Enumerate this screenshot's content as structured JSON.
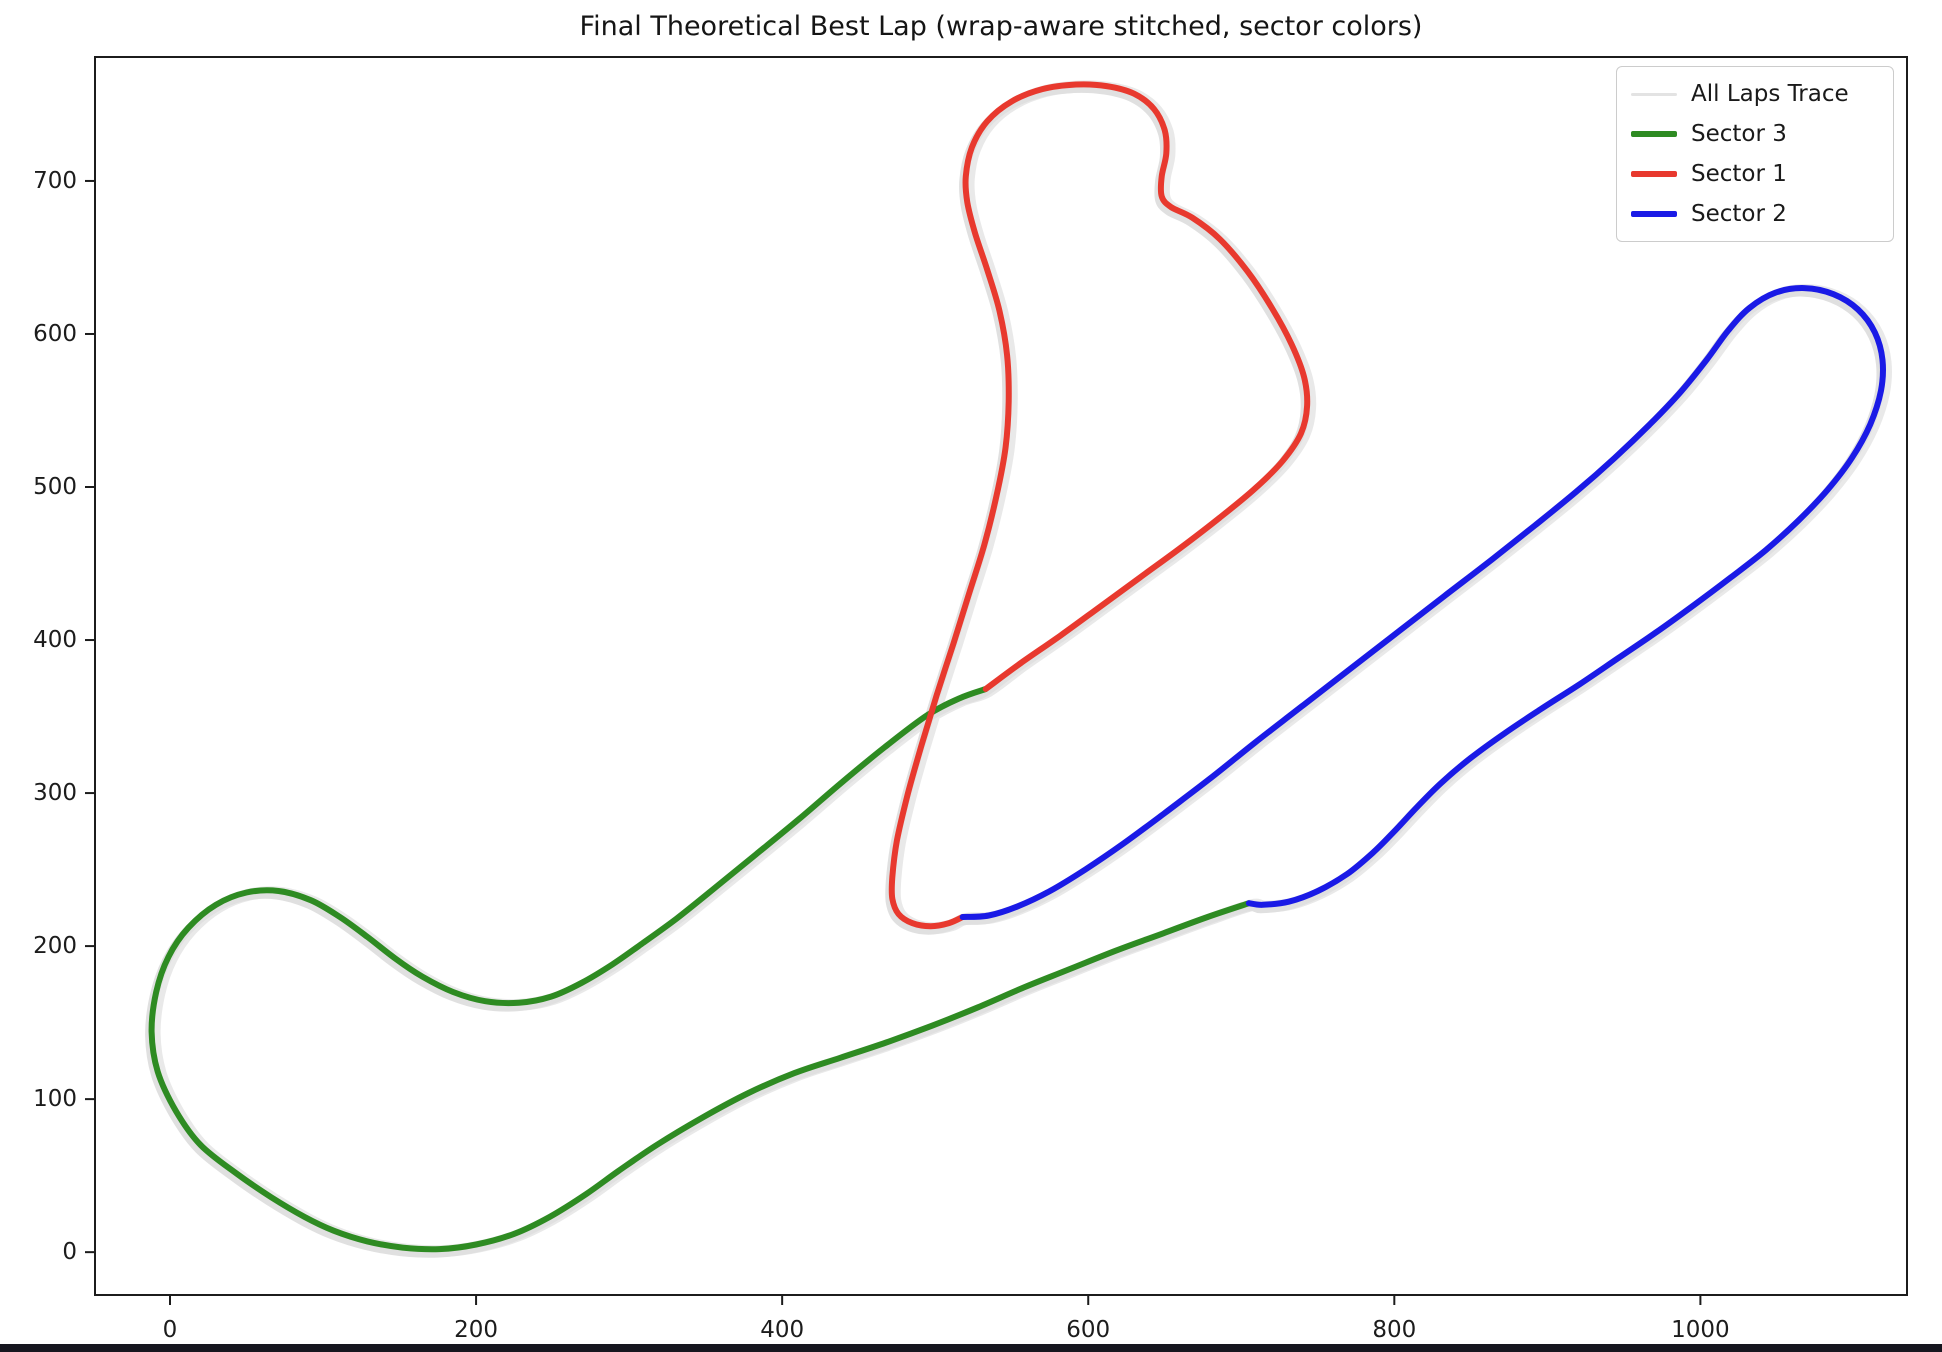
{
  "figure": {
    "title": "Final Theoretical Best Lap (wrap-aware stitched, sector colors)"
  },
  "chart_data": {
    "type": "line",
    "title": "Final Theoretical Best Lap (wrap-aware stitched, sector colors)",
    "xlabel": "",
    "ylabel": "",
    "xlim": [
      -49,
      1135
    ],
    "ylim": [
      -28,
      781
    ],
    "x_ticks": [
      0,
      200,
      400,
      600,
      800,
      1000
    ],
    "y_ticks": [
      0,
      100,
      200,
      300,
      400,
      500,
      600,
      700
    ],
    "grid": false,
    "legend_position": "upper right",
    "legend": [
      {
        "label": "All Laps Trace",
        "color": "#e3e3e3",
        "line_width": 3
      },
      {
        "label": "Sector 3",
        "color": "#2e8b22",
        "line_width": 6
      },
      {
        "label": "Sector 1",
        "color": "#e8392e",
        "line_width": 6
      },
      {
        "label": "Sector 2",
        "color": "#1a1ae6",
        "line_width": 6
      }
    ],
    "all_laps_trace": {
      "label": "All Laps Trace",
      "color": "#e9e9e9",
      "color2": "#e0e0e0",
      "offsets": [
        [
          3,
          2
        ],
        [
          -2,
          4
        ]
      ]
    },
    "series": [
      {
        "name": "Sector 3",
        "color": "#2e8b22",
        "points": [
          [
            705,
            228
          ],
          [
            678,
            219
          ],
          [
            648,
            208
          ],
          [
            618,
            197
          ],
          [
            588,
            185
          ],
          [
            558,
            173
          ],
          [
            528,
            160
          ],
          [
            498,
            148
          ],
          [
            468,
            137
          ],
          [
            438,
            127
          ],
          [
            408,
            117
          ],
          [
            378,
            104
          ],
          [
            348,
            88
          ],
          [
            318,
            70
          ],
          [
            293,
            53
          ],
          [
            272,
            38
          ],
          [
            248,
            23
          ],
          [
            225,
            12
          ],
          [
            200,
            5
          ],
          [
            176,
            2
          ],
          [
            152,
            3
          ],
          [
            129,
            7
          ],
          [
            107,
            14
          ],
          [
            88,
            23
          ],
          [
            66,
            36
          ],
          [
            44,
            51
          ],
          [
            20,
            70
          ],
          [
            4,
            92
          ],
          [
            -8,
            118
          ],
          [
            -12,
            144
          ],
          [
            -9,
            170
          ],
          [
            -1,
            193
          ],
          [
            12,
            212
          ],
          [
            30,
            227
          ],
          [
            50,
            235
          ],
          [
            71,
            236
          ],
          [
            92,
            230
          ],
          [
            111,
            219
          ],
          [
            129,
            206
          ],
          [
            147,
            192
          ],
          [
            165,
            180
          ],
          [
            185,
            170
          ],
          [
            206,
            164
          ],
          [
            228,
            163
          ],
          [
            249,
            167
          ],
          [
            269,
            176
          ],
          [
            289,
            188
          ],
          [
            309,
            202
          ],
          [
            331,
            218
          ],
          [
            356,
            238
          ],
          [
            383,
            260
          ],
          [
            411,
            283
          ],
          [
            439,
            307
          ],
          [
            467,
            330
          ],
          [
            495,
            351
          ],
          [
            516,
            362
          ],
          [
            533,
            368
          ]
        ]
      },
      {
        "name": "Sector 1",
        "color": "#e8392e",
        "points": [
          [
            533,
            368
          ],
          [
            556,
            385
          ],
          [
            582,
            403
          ],
          [
            608,
            422
          ],
          [
            634,
            441
          ],
          [
            660,
            460
          ],
          [
            686,
            480
          ],
          [
            709,
            499
          ],
          [
            727,
            517
          ],
          [
            739,
            535
          ],
          [
            743,
            553
          ],
          [
            741,
            572
          ],
          [
            733,
            593
          ],
          [
            720,
            617
          ],
          [
            704,
            641
          ],
          [
            686,
            662
          ],
          [
            668,
            676
          ],
          [
            654,
            683
          ],
          [
            648,
            690
          ],
          [
            648,
            703
          ],
          [
            651,
            718
          ],
          [
            650,
            733
          ],
          [
            643,
            747
          ],
          [
            630,
            757
          ],
          [
            612,
            762
          ],
          [
            592,
            763
          ],
          [
            570,
            760
          ],
          [
            550,
            752
          ],
          [
            534,
            739
          ],
          [
            524,
            722
          ],
          [
            520,
            703
          ],
          [
            521,
            686
          ],
          [
            526,
            666
          ],
          [
            534,
            642
          ],
          [
            542,
            615
          ],
          [
            547,
            586
          ],
          [
            548,
            556
          ],
          [
            546,
            526
          ],
          [
            540,
            494
          ],
          [
            532,
            462
          ],
          [
            522,
            430
          ],
          [
            512,
            398
          ],
          [
            501,
            364
          ],
          [
            491,
            331
          ],
          [
            482,
            299
          ],
          [
            475,
            269
          ],
          [
            472,
            245
          ],
          [
            472,
            231
          ],
          [
            476,
            221
          ],
          [
            485,
            215
          ],
          [
            497,
            213
          ],
          [
            509,
            215
          ],
          [
            518,
            219
          ]
        ]
      },
      {
        "name": "Sector 2",
        "color": "#1a1ae6",
        "points": [
          [
            518,
            219
          ],
          [
            535,
            220
          ],
          [
            554,
            226
          ],
          [
            575,
            236
          ],
          [
            598,
            250
          ],
          [
            623,
            267
          ],
          [
            650,
            287
          ],
          [
            679,
            309
          ],
          [
            709,
            333
          ],
          [
            740,
            357
          ],
          [
            771,
            381
          ],
          [
            802,
            405
          ],
          [
            833,
            429
          ],
          [
            863,
            452
          ],
          [
            892,
            475
          ],
          [
            919,
            497
          ],
          [
            944,
            519
          ],
          [
            967,
            541
          ],
          [
            987,
            562
          ],
          [
            1004,
            583
          ],
          [
            1018,
            602
          ],
          [
            1032,
            617
          ],
          [
            1049,
            627
          ],
          [
            1068,
            630
          ],
          [
            1087,
            626
          ],
          [
            1103,
            616
          ],
          [
            1114,
            601
          ],
          [
            1119,
            583
          ],
          [
            1118,
            563
          ],
          [
            1111,
            541
          ],
          [
            1099,
            519
          ],
          [
            1083,
            498
          ],
          [
            1064,
            478
          ],
          [
            1043,
            459
          ],
          [
            1020,
            441
          ],
          [
            996,
            423
          ],
          [
            971,
            405
          ],
          [
            946,
            388
          ],
          [
            921,
            371
          ],
          [
            896,
            355
          ],
          [
            872,
            339
          ],
          [
            850,
            323
          ],
          [
            831,
            307
          ],
          [
            815,
            291
          ],
          [
            801,
            276
          ],
          [
            786,
            261
          ],
          [
            769,
            247
          ],
          [
            750,
            236
          ],
          [
            731,
            229
          ],
          [
            714,
            227
          ],
          [
            705,
            228
          ]
        ]
      }
    ]
  }
}
